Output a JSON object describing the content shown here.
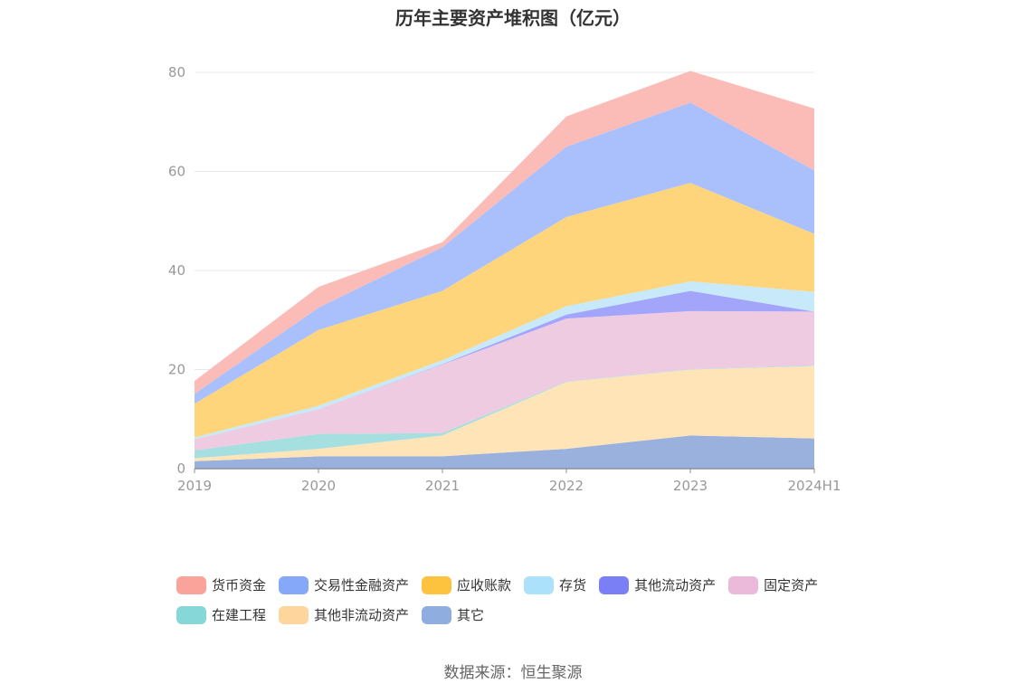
{
  "chart_data": {
    "type": "area",
    "stacked": true,
    "title": "历年主要资产堆积图（亿元）",
    "categories": [
      "2019",
      "2020",
      "2021",
      "2022",
      "2023",
      "2024H1"
    ],
    "yticks": [
      "0",
      "20",
      "40",
      "60",
      "80"
    ],
    "ylim": [
      0,
      80
    ],
    "grid": true,
    "legend_position": "bottom",
    "series": [
      {
        "name": "其它",
        "values": [
          1.5,
          2.5,
          2.5,
          4.0,
          6.7,
          6.1
        ],
        "color": "#9ab1de"
      },
      {
        "name": "其他非流动资产",
        "values": [
          0.6,
          1.5,
          4.2,
          13.5,
          13.3,
          14.6
        ],
        "color": "#ffe4b8"
      },
      {
        "name": "在建工程",
        "values": [
          1.6,
          3.0,
          0.5,
          0.1,
          0.1,
          0.1
        ],
        "color": "#a6dfe0"
      },
      {
        "name": "固定资产",
        "values": [
          2.2,
          5.0,
          13.8,
          12.7,
          11.7,
          10.9
        ],
        "color": "#efcbe2"
      },
      {
        "name": "其他流动资产",
        "values": [
          0.0,
          0.0,
          0.1,
          0.8,
          4.1,
          0.0
        ],
        "color": "#a3a5fa"
      },
      {
        "name": "存货",
        "values": [
          0.4,
          0.7,
          0.8,
          1.7,
          1.9,
          4.0
        ],
        "color": "#c7e9f9"
      },
      {
        "name": "应收账款",
        "values": [
          6.8,
          15.3,
          14.0,
          18.0,
          19.9,
          11.7
        ],
        "color": "#fed57b"
      },
      {
        "name": "交易性金融资产",
        "values": [
          2.0,
          4.5,
          8.8,
          14.2,
          16.2,
          12.8
        ],
        "color": "#a9c0fd"
      },
      {
        "name": "货币资金",
        "values": [
          2.6,
          4.2,
          1.0,
          6.1,
          6.4,
          12.5
        ],
        "color": "#fbbcb7"
      }
    ]
  },
  "legend": {
    "row1": [
      {
        "label": "货币资金",
        "color": "#f9a39b"
      },
      {
        "label": "交易性金融资产",
        "color": "#85a8f9"
      },
      {
        "label": "应收账款",
        "color": "#fec33e"
      },
      {
        "label": "存货",
        "color": "#abe1fa"
      },
      {
        "label": "其他流动资产",
        "color": "#7b7ff6"
      },
      {
        "label": "固定资产",
        "color": "#ebb9d9"
      }
    ],
    "row2": [
      {
        "label": "在建工程",
        "color": "#85d7d8"
      },
      {
        "label": "其他非流动资产",
        "color": "#fed59c"
      },
      {
        "label": "其它",
        "color": "#8fadde"
      }
    ]
  },
  "source": "数据来源：恒生聚源"
}
